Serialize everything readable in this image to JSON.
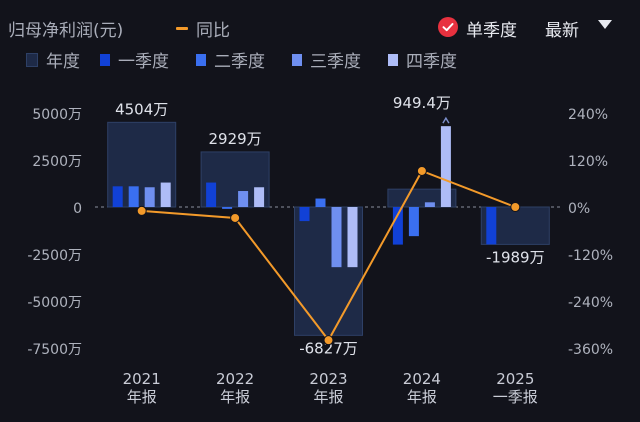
{
  "header": {
    "title": "归母净利润(元)",
    "yoy_legend": "同比",
    "mode_label": "单季度",
    "latest_label": "最新"
  },
  "legend": [
    {
      "label": "年度",
      "color": "#1e2a47"
    },
    {
      "label": "一季度",
      "color": "#1141d6"
    },
    {
      "label": "二季度",
      "color": "#3a6ff0"
    },
    {
      "label": "三季度",
      "color": "#6f8ff0"
    },
    {
      "label": "四季度",
      "color": "#aebcf7"
    }
  ],
  "colors": {
    "background": "#12131b",
    "annual_fill": "#1e2a47",
    "annual_stroke": "#2e4066",
    "q1": "#1141d6",
    "q2": "#3a6ff0",
    "q3": "#6f8ff0",
    "q4": "#aebcf7",
    "yoy_line": "#f39a2a"
  },
  "chart_data": {
    "type": "bar",
    "categories": [
      {
        "line1": "2021",
        "line2": "年报"
      },
      {
        "line1": "2022",
        "line2": "年报"
      },
      {
        "line1": "2023",
        "line2": "年报"
      },
      {
        "line1": "2024",
        "line2": "年报"
      },
      {
        "line1": "2025",
        "line2": "一季报"
      }
    ],
    "units": "万",
    "annual_values": [
      4504,
      2929,
      -6827,
      949.4,
      -1989
    ],
    "annual_labels": [
      "4504万",
      "2929万",
      "-6827万",
      "949.4万",
      "-1989万"
    ],
    "quarterly": {
      "names": [
        "一季度",
        "二季度",
        "三季度",
        "四季度"
      ],
      "values": [
        [
          1100,
          1100,
          1050,
          1300
        ],
        [
          1300,
          -100,
          850,
          1050
        ],
        [
          -750,
          450,
          -3200,
          -3200
        ],
        [
          -2000,
          -1550,
          250,
          4300
        ],
        [
          -1989,
          null,
          null,
          null
        ]
      ]
    },
    "yoy_series": {
      "name": "同比",
      "values": [
        -10,
        -28,
        -340,
        92,
        0
      ]
    },
    "y_left": {
      "ticks": [
        5000,
        2500,
        0,
        -2500,
        -5000,
        -7500
      ],
      "tick_labels": [
        "5000万",
        "2500万",
        "0",
        "-2500万",
        "-5000万",
        "-7500万"
      ],
      "range": [
        -7500,
        5000
      ]
    },
    "y_right": {
      "ticks": [
        240,
        120,
        0,
        -120,
        -240,
        -360
      ],
      "tick_labels": [
        "240%",
        "120%",
        "0%",
        "-120%",
        "-240%",
        "-360%"
      ],
      "range": [
        -360,
        240
      ]
    }
  }
}
